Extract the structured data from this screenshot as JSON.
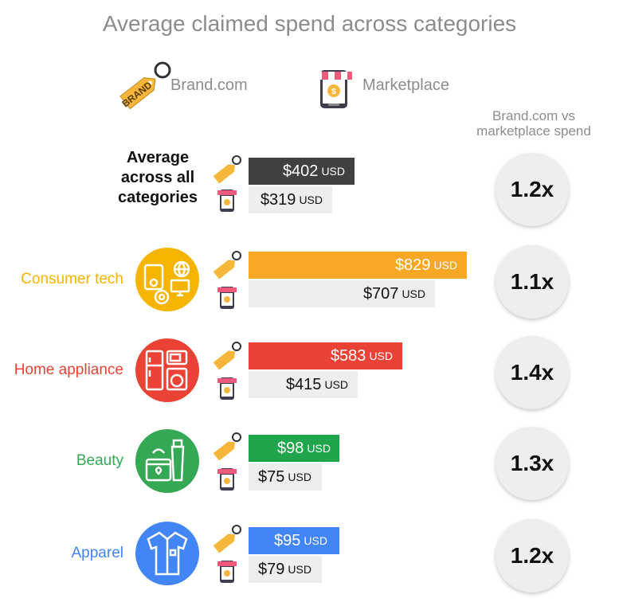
{
  "chart_data": {
    "type": "bar",
    "title": "Average claimed spend across categories",
    "legend": [
      {
        "name": "Brand.com"
      },
      {
        "name": "Marketplace"
      }
    ],
    "ratio_header": "Brand.com vs marketplace spend",
    "unit": "USD",
    "categories": [
      "Average across all categories",
      "Consumer tech",
      "Home appliance",
      "Beauty",
      "Apparel"
    ],
    "series": [
      {
        "name": "Brand.com",
        "values": [
          402,
          829,
          583,
          98,
          95
        ]
      },
      {
        "name": "Marketplace",
        "values": [
          319,
          707,
          415,
          75,
          79
        ]
      }
    ],
    "ratios": [
      "1.2x",
      "1.1x",
      "1.4x",
      "1.3x",
      "1.2x"
    ],
    "rows": [
      {
        "key": "average",
        "label": "Average across all categories",
        "brand_text": "$402",
        "market_text": "$319",
        "brand_value": 402,
        "market_value": 319,
        "ratio": "1.2x",
        "color": "#404040",
        "label_color": "#111111"
      },
      {
        "key": "consumer-tech",
        "label": "Consumer tech",
        "brand_text": "$829",
        "market_text": "$707",
        "brand_value": 829,
        "market_value": 707,
        "ratio": "1.1x",
        "color": "#F9A825",
        "label_color": "#F4B400"
      },
      {
        "key": "home-appliance",
        "label": "Home appliance",
        "brand_text": "$583",
        "market_text": "$415",
        "brand_value": 583,
        "market_value": 415,
        "ratio": "1.4x",
        "color": "#EA4335",
        "label_color": "#EA4335"
      },
      {
        "key": "beauty",
        "label": "Beauty",
        "brand_text": "$98",
        "market_text": "$75",
        "brand_value": 98,
        "market_value": 75,
        "ratio": "1.3x",
        "color": "#1FA64A",
        "label_color": "#34A853"
      },
      {
        "key": "apparel",
        "label": "Apparel",
        "brand_text": "$95",
        "market_text": "$79",
        "brand_value": 95,
        "market_value": 79,
        "ratio": "1.2x",
        "color": "#4285F4",
        "label_color": "#4285F4"
      }
    ],
    "axis_max": 829
  },
  "icons": {
    "tag_text": "BRAND",
    "brand_icon": "brand-tag-icon",
    "market_icon": "shop-phone-icon"
  }
}
